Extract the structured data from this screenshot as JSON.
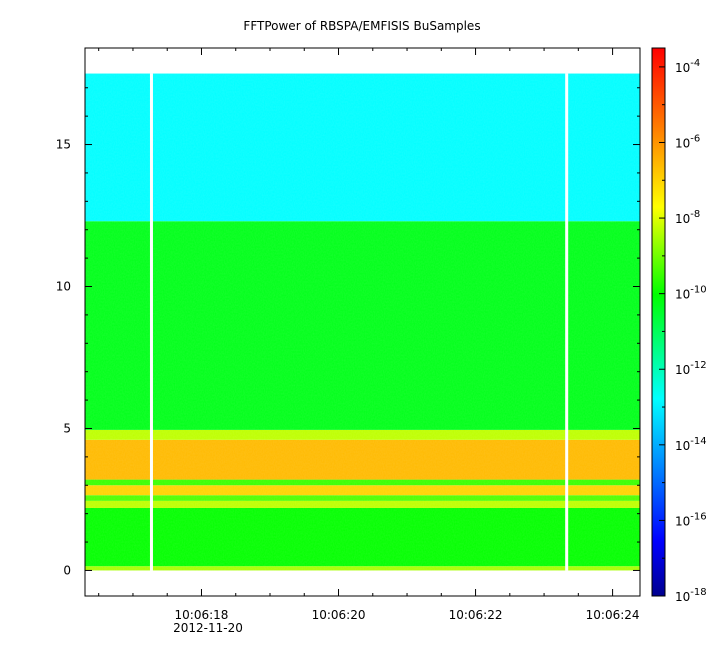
{
  "chart_data": {
    "type": "heatmap",
    "title": "FFTPower of RBSPA/EMFISIS  BuSamples",
    "xlabel": "",
    "ylabel": "",
    "x_tick_labels": [
      "10:06:18",
      "10:06:20",
      "10:06:22",
      "10:06:24"
    ],
    "x_ticks_seconds": [
      18,
      20,
      22,
      24
    ],
    "x_minor_ticks_seconds": [
      16.5,
      17,
      17.5,
      18.5,
      19,
      19.5,
      20.5,
      21,
      21.5,
      22.5,
      23,
      23.5
    ],
    "date_label": "2012-11-20",
    "xlim_seconds": [
      16.3,
      24.4
    ],
    "y_ticks": [
      0,
      5,
      10,
      15
    ],
    "ylim": [
      -0.9,
      18.4
    ],
    "data_y_range": [
      0,
      17.5
    ],
    "data_gaps_seconds": [
      17.27,
      23.33
    ],
    "colorbar": {
      "scale": "log",
      "range_exp": [
        -18,
        -3.5
      ],
      "tick_exponents": [
        -4,
        -6,
        -8,
        -10,
        -12,
        -14,
        -16,
        -18
      ],
      "tick_base": "10",
      "colormap": [
        "#00008f",
        "#0000ff",
        "#00ffff",
        "#00ff00",
        "#ffff00",
        "#ff8000",
        "#ff0000"
      ]
    },
    "bands": [
      {
        "y_from": 0.0,
        "y_to": 0.15,
        "log_power": -8.5
      },
      {
        "y_from": 0.15,
        "y_to": 2.2,
        "log_power": -10.0
      },
      {
        "y_from": 2.2,
        "y_to": 2.45,
        "log_power": -8.3
      },
      {
        "y_from": 2.45,
        "y_to": 2.65,
        "log_power": -9.3
      },
      {
        "y_from": 2.65,
        "y_to": 3.0,
        "log_power": -7.0
      },
      {
        "y_from": 3.0,
        "y_to": 3.2,
        "log_power": -9.5
      },
      {
        "y_from": 3.2,
        "y_to": 4.6,
        "log_power": -6.6
      },
      {
        "y_from": 4.6,
        "y_to": 4.95,
        "log_power": -8.3
      },
      {
        "y_from": 4.95,
        "y_to": 12.3,
        "log_power": -10.3
      },
      {
        "y_from": 12.3,
        "y_to": 17.5,
        "log_power": -12.8
      }
    ]
  }
}
